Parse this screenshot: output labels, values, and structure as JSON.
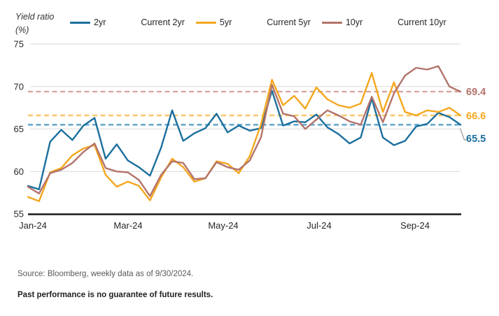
{
  "header": {
    "y_axis_title_line1": "Yield ratio",
    "y_axis_title_line2": "(%)"
  },
  "legend": {
    "items": [
      {
        "label": "2yr",
        "color": "#1b6f9e",
        "dashed": false
      },
      {
        "label": "Current 2yr",
        "color": "#58a1c6",
        "dashed": true
      },
      {
        "label": "5yr",
        "color": "#f4a71d",
        "dashed": false
      },
      {
        "label": "Current 5yr",
        "color": "#f9c466",
        "dashed": true
      },
      {
        "label": "10yr",
        "color": "#b3736b",
        "dashed": false
      },
      {
        "label": "Current 10yr",
        "color": "#d7a59d",
        "dashed": true
      }
    ]
  },
  "chart_data": {
    "type": "line",
    "title": "Yield ratio (%)",
    "grid": true,
    "ylim": [
      55,
      75
    ],
    "y_ticks": [
      75,
      70,
      65,
      60,
      55
    ],
    "x_tick_labels": [
      "Jan-24",
      "Mar-24",
      "May-24",
      "Jul-24",
      "Sep-24"
    ],
    "x_dates": [
      "Jan-1",
      "Jan-8",
      "Jan-15",
      "Jan-22",
      "Jan-29",
      "Feb-5",
      "Feb-12",
      "Feb-19",
      "Feb-26",
      "Mar-4",
      "Mar-11",
      "Mar-18",
      "Mar-25",
      "Apr-1",
      "Apr-8",
      "Apr-15",
      "Apr-22",
      "Apr-29",
      "May-6",
      "May-13",
      "May-20",
      "May-27",
      "Jun-3",
      "Jun-10",
      "Jun-17",
      "Jun-24",
      "Jul-1",
      "Jul-8",
      "Jul-15",
      "Jul-22",
      "Jul-29",
      "Aug-5",
      "Aug-12",
      "Aug-19",
      "Aug-26",
      "Sep-2",
      "Sep-9",
      "Sep-16",
      "Sep-23",
      "Sep-30"
    ],
    "series": [
      {
        "name": "2yr",
        "color": "#1b6f9e",
        "values": [
          58.3,
          57.9,
          63.5,
          64.9,
          63.7,
          65.4,
          66.3,
          61.5,
          63.2,
          61.3,
          60.5,
          59.5,
          62.8,
          67.2,
          63.6,
          64.5,
          65.1,
          66.8,
          64.6,
          65.4,
          64.8,
          65.1,
          69.5,
          65.4,
          65.9,
          65.8,
          66.7,
          65.2,
          64.4,
          63.3,
          64.0,
          68.6,
          64.0,
          63.1,
          63.6,
          65.3,
          65.6,
          66.9,
          66.4,
          65.5
        ]
      },
      {
        "name": "5yr",
        "color": "#f4a71d",
        "values": [
          57.0,
          56.5,
          59.9,
          60.4,
          61.9,
          62.7,
          63.1,
          59.6,
          58.2,
          58.8,
          58.3,
          56.6,
          59.3,
          61.5,
          60.5,
          58.8,
          59.2,
          61.2,
          60.9,
          59.8,
          61.8,
          65.5,
          70.8,
          67.8,
          68.9,
          67.4,
          69.9,
          68.5,
          67.8,
          67.5,
          68.0,
          71.6,
          67.0,
          70.5,
          67.0,
          66.6,
          67.2,
          67.0,
          67.5,
          66.6
        ]
      },
      {
        "name": "10yr",
        "color": "#b3736b",
        "values": [
          58.2,
          57.4,
          59.8,
          60.2,
          61.0,
          62.3,
          63.3,
          60.4,
          60.0,
          59.9,
          59.0,
          57.1,
          59.6,
          61.2,
          61.0,
          59.1,
          59.2,
          61.1,
          60.5,
          60.2,
          61.3,
          64.0,
          70.2,
          66.8,
          66.5,
          65.0,
          66.1,
          67.2,
          66.6,
          65.9,
          65.5,
          68.8,
          65.8,
          69.2,
          71.3,
          72.2,
          72.0,
          72.4,
          70.0,
          69.4
        ]
      }
    ],
    "current_lines": [
      {
        "name": "Current 10yr",
        "value": 69.4,
        "label": "69.4",
        "color": "#d7a59d",
        "label_color": "#b3736b"
      },
      {
        "name": "Current 5yr",
        "value": 66.6,
        "label": "66.6",
        "color": "#f9c466",
        "label_color": "#f4a71d"
      },
      {
        "name": "Current 2yr",
        "value": 65.5,
        "label": "65.5",
        "color": "#58a1c6",
        "label_color": "#1b6f9e"
      }
    ],
    "legend_position": "top"
  },
  "footer": {
    "source": "Source: Bloomberg, weekly data as of 9/30/2024.",
    "disclaimer": "Past performance is no guarantee of future results."
  }
}
